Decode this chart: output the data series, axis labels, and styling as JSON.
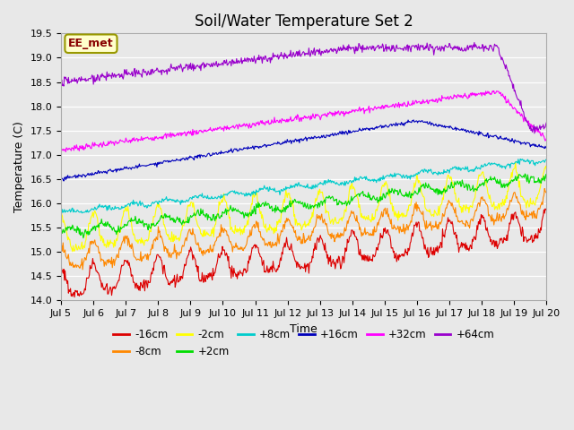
{
  "title": "Soil/Water Temperature Set 2",
  "xlabel": "Time",
  "ylabel": "Temperature (C)",
  "ylim": [
    14.0,
    19.5
  ],
  "annotation": "EE_met",
  "xtick_labels": [
    "Jul 5",
    "Jul 6",
    "Jul 7",
    "Jul 8",
    "Jul 9",
    "Jul 10",
    "Jul 11",
    "Jul 12",
    "Jul 13",
    "Jul 14",
    "Jul 15",
    "Jul 16",
    "Jul 17",
    "Jul 18",
    "Jul 19",
    "Jul 20"
  ],
  "series": [
    {
      "label": "-16cm",
      "color": "#dd0000"
    },
    {
      "label": "-8cm",
      "color": "#ff8800"
    },
    {
      "label": "-2cm",
      "color": "#ffff00"
    },
    {
      "label": "+2cm",
      "color": "#00dd00"
    },
    {
      "label": "+8cm",
      "color": "#00cccc"
    },
    {
      "label": "+16cm",
      "color": "#0000bb"
    },
    {
      "label": "+32cm",
      "color": "#ff00ff"
    },
    {
      "label": "+64cm",
      "color": "#9900cc"
    }
  ],
  "background_color": "#e8e8e8",
  "title_fontsize": 12,
  "label_fontsize": 9,
  "tick_fontsize": 8
}
